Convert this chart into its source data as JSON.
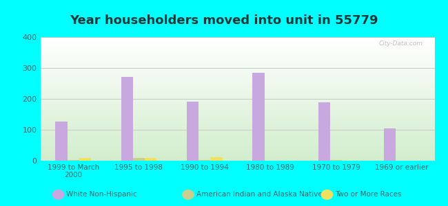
{
  "title": "Year householders moved into unit in 55779",
  "categories": [
    "1999 to March\n2000",
    "1995 to 1998",
    "1990 to 1994",
    "1980 to 1989",
    "1970 to 1979",
    "1969 or earlier"
  ],
  "series": [
    {
      "name": "White Non-Hispanic",
      "color": "#c9a8e0",
      "values": [
        127,
        271,
        192,
        285,
        188,
        104
      ]
    },
    {
      "name": "American Indian and Alaska Native",
      "color": "#c8d090",
      "values": [
        2,
        10,
        3,
        0,
        2,
        0
      ]
    },
    {
      "name": "Two or More Races",
      "color": "#f0e060",
      "values": [
        8,
        8,
        12,
        0,
        0,
        0
      ]
    }
  ],
  "ylim": [
    0,
    400
  ],
  "yticks": [
    0,
    100,
    200,
    300,
    400
  ],
  "background_color": "#00ffff",
  "title_color": "#1a3a3a",
  "tick_color": "#336666",
  "title_fontsize": 13,
  "bar_width": 0.18,
  "grid_color": "#c8c8c8",
  "legend_fontsize": 7.5,
  "legend_label_color": "#336666"
}
